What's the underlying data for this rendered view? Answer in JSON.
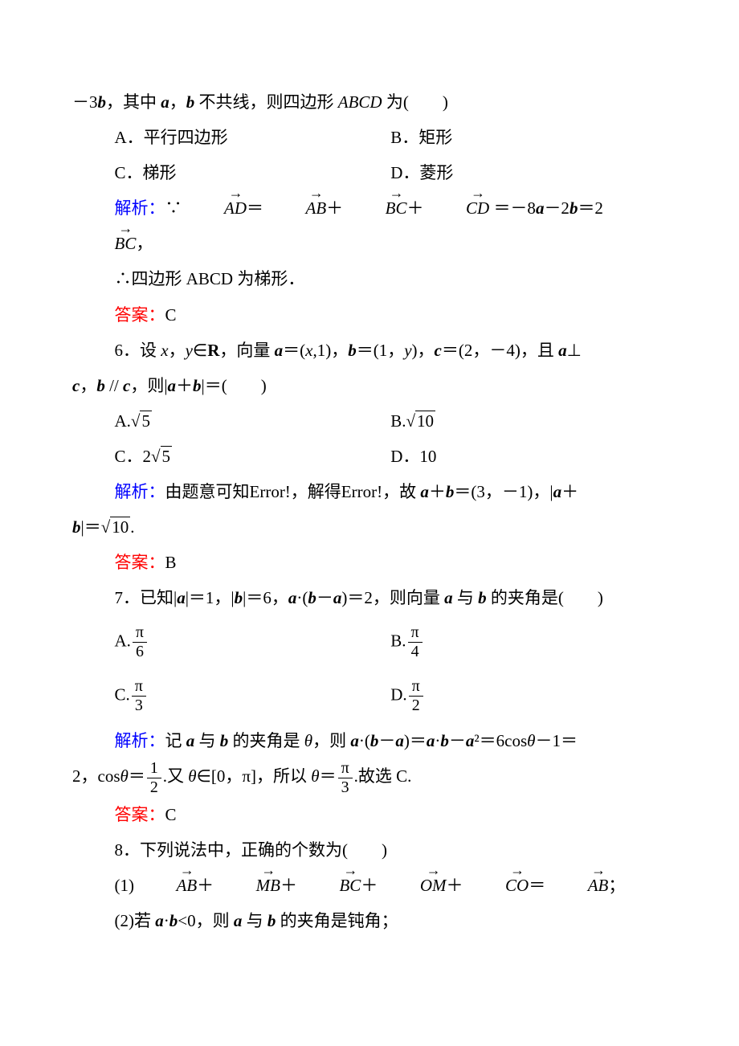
{
  "q5_cont": {
    "lead": "－3",
    "lead2": "，其中 ",
    "lead3": "，",
    "lead4": " 不共线，则四边形 ",
    "shape": "ABCD",
    "lead5": " 为(　　)",
    "options": {
      "A": "A．平行四边形",
      "B": "B．矩形",
      "C": "C．梯形",
      "D": "D．菱形"
    },
    "sol_label": "解析：",
    "sol_body1": "∵",
    "sol_body2": " ＝－8",
    "sol_body3": "－2",
    "sol_body4": "＝2",
    "sol_body5": "，",
    "sol_line2": "∴四边形 ABCD 为梯形．",
    "ans_label": "答案：",
    "ans": "C"
  },
  "q6": {
    "num": "6",
    "stem1": "．设 ",
    "stem2": "，",
    "stem3": "∈",
    "setR": "R",
    "stem4": "，向量 ",
    "stem5": "＝(",
    "stem6": ",1)，",
    "stem7": "＝(1，",
    "stem8": ")，",
    "stem9": "＝(2，－4)，且 ",
    "perp": "⊥",
    "line2a": "，",
    "par": " // ",
    "line2b": "，则|",
    "line2c": "＋",
    "line2d": "|＝(　　)",
    "options": {
      "A_pre": "A.",
      "A_val": "5",
      "B_pre": "B.",
      "B_val": "10",
      "C_pre": "C．2",
      "C_val": "5",
      "D": "D．10"
    },
    "sol_label": "解析：",
    "sol_body": "由题意可知Error!，解得Error!，故 ",
    "sol_body2": "＋",
    "sol_body3": "＝(3，－1)，|",
    "sol_body4": "＋",
    "sol_eq": "|＝",
    "sol_val": "10",
    "sol_end": ".",
    "ans_label": "答案：",
    "ans": "B"
  },
  "q7": {
    "num": "7",
    "stem1": "．已知|",
    "stem2": "|＝1，|",
    "stem3": "|＝6，",
    "stem4": "·(",
    "stem5": "－",
    "stem6": ")＝2，则向量 ",
    "stem7": " 与 ",
    "stem8": " 的夹角是(　　)",
    "options": {
      "A": "A.",
      "A_num": "π",
      "A_den": "6",
      "B": "B.",
      "B_num": "π",
      "B_den": "4",
      "C": "C.",
      "C_num": "π",
      "C_den": "3",
      "D": "D.",
      "D_num": "π",
      "D_den": "2"
    },
    "sol_label": "解析：",
    "sol1": "记 ",
    "sol2": " 与 ",
    "sol3": " 的夹角是 ",
    "theta": "θ",
    "sol4": "，则 ",
    "sol5": "·(",
    "sol6": "－",
    "sol7": ")＝",
    "sol8": "·",
    "sol9": "－",
    "sol10": "²＝6cos",
    "sol11": "－1＝",
    "line2_a": "2，cos",
    "eq": "＝",
    "frac1_num": "1",
    "frac1_den": "2",
    "line2_b": ".又 ",
    "line2_c": "∈[0，π]，所以 ",
    "line2_d": "＝",
    "frac2_num": "π",
    "frac2_den": "3",
    "line2_e": ".故选 C.",
    "ans_label": "答案：",
    "ans": "C"
  },
  "q8": {
    "num": "8",
    "stem": "．下列说法中，正确的个数为(　　)",
    "item1_pre": "(1)",
    "plus": "＋",
    "eq": "＝",
    "semi": "；",
    "item2_pre": "(2)若 ",
    "item2_mid": "·",
    "item2_lt": "<0，则 ",
    "item2_and": " 与 ",
    "item2_end": " 的夹角是钝角；"
  }
}
